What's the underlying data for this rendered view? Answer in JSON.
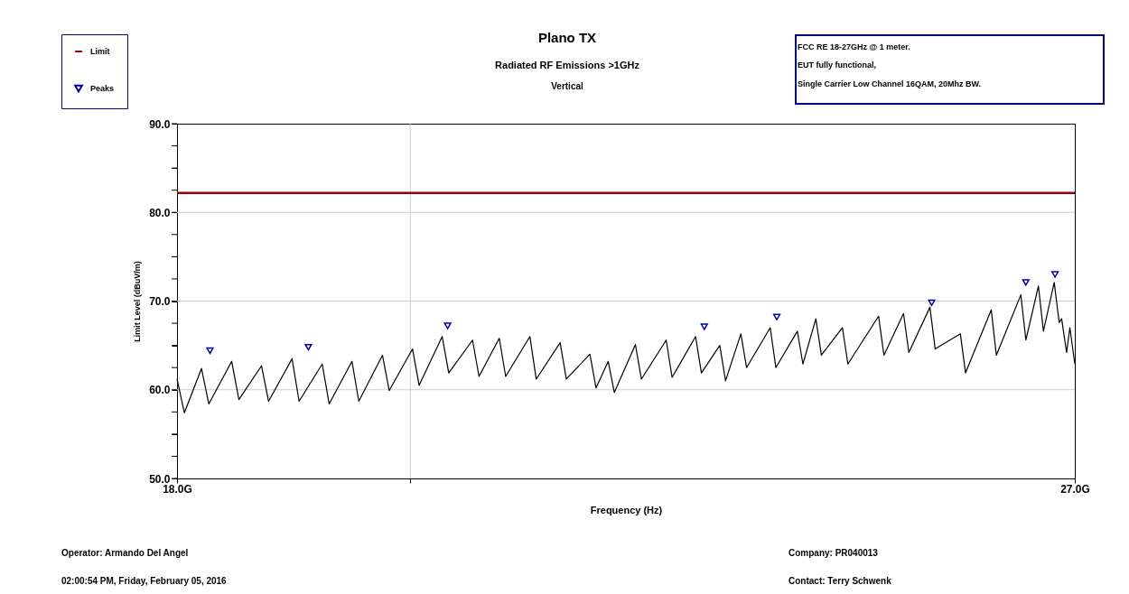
{
  "chart_data": {
    "type": "line",
    "title": "Plano TX",
    "subtitle": "Radiated RF Emissions >1GHz",
    "xlabel": "Frequency (Hz)",
    "ylabel": "Limit Level (dBuV/m)",
    "log": "x",
    "xlim": [
      18,
      27
    ],
    "xticks": [
      {
        "value": 18,
        "label": "18.0G"
      },
      {
        "value": 20,
        "label": null
      },
      {
        "value": 27,
        "label": "27.0G"
      }
    ],
    "ylim": [
      50,
      90
    ],
    "yticks": [
      {
        "value": 50,
        "label": "50.0"
      },
      {
        "value": 52.5,
        "label": null
      },
      {
        "value": 55,
        "label": null
      },
      {
        "value": 57.5,
        "label": null
      },
      {
        "value": 60,
        "label": "60.0"
      },
      {
        "value": 62.5,
        "label": null
      },
      {
        "value": 65,
        "label": null
      },
      {
        "value": 67.5,
        "label": null
      },
      {
        "value": 70,
        "label": "70.0"
      },
      {
        "value": 72.5,
        "label": null
      },
      {
        "value": 75,
        "label": null
      },
      {
        "value": 77.5,
        "label": null
      },
      {
        "value": 80,
        "label": "80.0"
      },
      {
        "value": 82.5,
        "label": null
      },
      {
        "value": 85,
        "label": null
      },
      {
        "value": 87.5,
        "label": null
      },
      {
        "value": 90,
        "label": "90.0"
      }
    ],
    "grid": true,
    "legend": "top left",
    "series": [
      {
        "name": "Limit",
        "color": "#990000",
        "x": [
          18,
          27
        ],
        "values": [
          82.2,
          82.2
        ]
      },
      {
        "color": "#000000",
        "x": [
          18.0,
          18.06,
          18.2,
          18.26,
          18.45,
          18.51,
          18.7,
          18.76,
          18.96,
          19.02,
          19.22,
          19.28,
          19.48,
          19.54,
          19.75,
          19.81,
          20.02,
          20.08,
          20.29,
          20.35,
          20.57,
          20.63,
          20.82,
          20.88,
          21.11,
          21.17,
          21.4,
          21.46,
          21.69,
          21.75,
          21.87,
          21.93,
          22.14,
          22.2,
          22.45,
          22.51,
          22.75,
          22.81,
          23.0,
          23.06,
          23.22,
          23.28,
          23.53,
          23.59,
          23.82,
          23.88,
          24.02,
          24.08,
          24.31,
          24.37,
          24.71,
          24.77,
          24.99,
          25.05,
          25.29,
          25.35,
          25.64,
          25.7,
          26.0,
          26.06,
          26.35,
          26.41,
          26.56,
          26.62,
          26.75,
          26.81,
          26.84,
          26.9,
          26.94,
          27.0
        ],
        "values": [
          61.2,
          57.4,
          62.4,
          58.4,
          63.2,
          58.9,
          62.7,
          58.7,
          63.5,
          58.7,
          62.9,
          58.4,
          63.2,
          58.7,
          63.9,
          59.9,
          64.6,
          60.5,
          66.0,
          61.9,
          65.6,
          61.5,
          65.8,
          61.5,
          66.0,
          61.2,
          65.3,
          61.2,
          64.0,
          60.2,
          63.2,
          59.7,
          65.1,
          61.2,
          65.6,
          61.4,
          66.0,
          61.9,
          65.0,
          61.0,
          66.3,
          62.5,
          67.0,
          62.5,
          66.6,
          62.9,
          68.0,
          63.9,
          67.0,
          62.9,
          68.3,
          63.9,
          68.6,
          64.2,
          69.3,
          64.6,
          66.3,
          61.9,
          69.0,
          63.9,
          70.7,
          65.6,
          71.7,
          66.6,
          72.1,
          67.6,
          68.0,
          64.2,
          67.0,
          62.9
        ]
      },
      {
        "name": "Peaks",
        "type": "scatter",
        "marker": "triangle",
        "color": "#000099",
        "x": [
          18.27,
          19.1,
          20.34,
          22.84,
          23.6,
          25.31,
          26.41,
          26.76
        ],
        "values": [
          64.4,
          64.8,
          67.2,
          67.1,
          68.2,
          69.8,
          72.1,
          73.0
        ]
      }
    ],
    "annotations": [
      "Vertical",
      "FCC RE 18-27GHz @ 1 meter.",
      "EUT fully functional,",
      "Single Carrier Low Channel 16QAM, 20Mhz BW.",
      "Operator: Armando Del Angel",
      "02:00:54 PM, Friday, February 05, 2016",
      "Company: PR040013",
      "Contact: Terry Schwenk"
    ]
  }
}
